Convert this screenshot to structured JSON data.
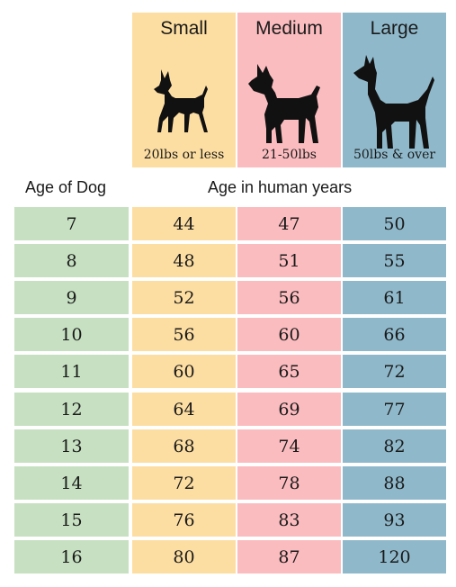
{
  "colors": {
    "age": "#c6e0c1",
    "small": "#fddea2",
    "medium": "#fbbcbf",
    "large": "#8fb9cb",
    "silhouette": "#111111"
  },
  "headers": {
    "small": {
      "title": "Small",
      "weight": "20lbs or less",
      "icon": "small-dog-icon"
    },
    "medium": {
      "title": "Medium",
      "weight": "21-50lbs",
      "icon": "medium-dog-icon"
    },
    "large": {
      "title": "Large",
      "weight": "50lbs & over",
      "icon": "large-dog-icon"
    }
  },
  "age_label": "Age of Dog",
  "human_label": "Age in human years",
  "chart_data": {
    "type": "table",
    "columns": [
      "Age of Dog",
      "Small",
      "Medium",
      "Large"
    ],
    "rows": [
      [
        "7",
        "44",
        "47",
        "50"
      ],
      [
        "8",
        "48",
        "51",
        "55"
      ],
      [
        "9",
        "52",
        "56",
        "61"
      ],
      [
        "10",
        "56",
        "60",
        "66"
      ],
      [
        "11",
        "60",
        "65",
        "72"
      ],
      [
        "12",
        "64",
        "69",
        "77"
      ],
      [
        "13",
        "68",
        "74",
        "82"
      ],
      [
        "14",
        "72",
        "78",
        "88"
      ],
      [
        "15",
        "76",
        "83",
        "93"
      ],
      [
        "16",
        "80",
        "87",
        "120"
      ]
    ]
  }
}
